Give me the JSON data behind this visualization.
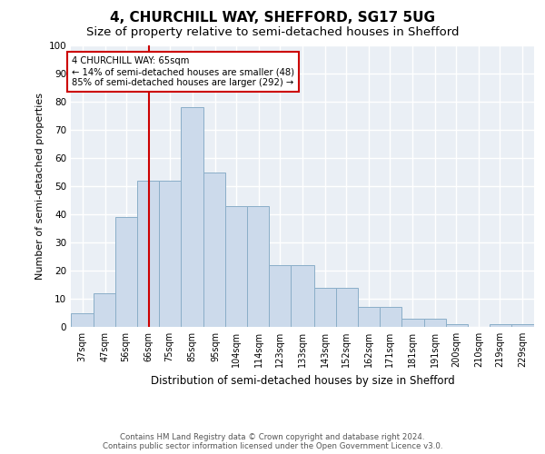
{
  "title": "4, CHURCHILL WAY, SHEFFORD, SG17 5UG",
  "subtitle": "Size of property relative to semi-detached houses in Shefford",
  "xlabel": "Distribution of semi-detached houses by size in Shefford",
  "ylabel": "Number of semi-detached properties",
  "bin_labels": [
    "37sqm",
    "47sqm",
    "56sqm",
    "66sqm",
    "75sqm",
    "85sqm",
    "95sqm",
    "104sqm",
    "114sqm",
    "123sqm",
    "133sqm",
    "143sqm",
    "152sqm",
    "162sqm",
    "171sqm",
    "181sqm",
    "191sqm",
    "200sqm",
    "210sqm",
    "219sqm",
    "229sqm"
  ],
  "bar_values": [
    5,
    12,
    39,
    52,
    52,
    78,
    55,
    43,
    43,
    22,
    22,
    14,
    14,
    7,
    7,
    3,
    3,
    1,
    0,
    1,
    1
  ],
  "bar_color": "#ccdaeb",
  "bar_edge_color": "#8aaec8",
  "property_line_x": 66,
  "ylim": [
    0,
    100
  ],
  "annotation_text": "4 CHURCHILL WAY: 65sqm\n← 14% of semi-detached houses are smaller (48)\n85% of semi-detached houses are larger (292) →",
  "annotation_box_color": "#ffffff",
  "annotation_box_edge_color": "#cc0000",
  "vline_color": "#cc0000",
  "footnote": "Contains HM Land Registry data © Crown copyright and database right 2024.\nContains public sector information licensed under the Open Government Licence v3.0.",
  "bg_color": "#eaeff5",
  "grid_color": "#ffffff",
  "title_fontsize": 11,
  "subtitle_fontsize": 9.5
}
